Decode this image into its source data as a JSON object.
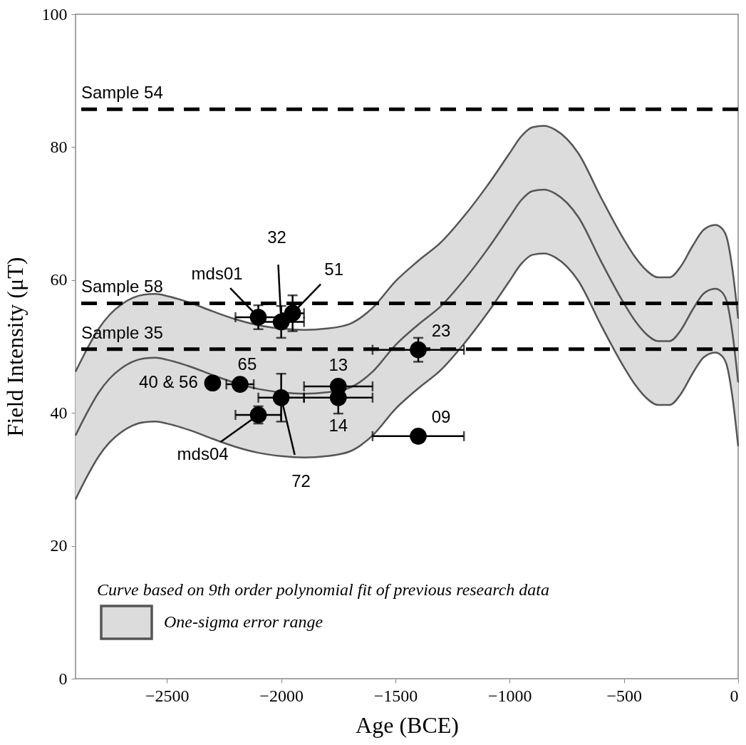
{
  "chart_data": {
    "type": "scatter",
    "xlabel": "Age (BCE)",
    "ylabel": "Field Intensity (μT)",
    "xlim": [
      -2900,
      0
    ],
    "xticks": [
      -2500,
      -2000,
      -1500,
      -1000,
      -500,
      0
    ],
    "ylim": [
      0,
      100
    ],
    "yticks": [
      0,
      20,
      40,
      60,
      80,
      100
    ],
    "grid": false,
    "legend": "bottom left",
    "legend_title": "Curve based on 9th order polynomial fit of previous research data",
    "series": [
      {
        "name": "One-sigma error range",
        "type": "line",
        "color": "#555555",
        "x": [
          -2900,
          -2850,
          -2800,
          -2750,
          -2700,
          -2650,
          -2600,
          -2550,
          -2500,
          -2400,
          -2300,
          -2200,
          -2100,
          -2000,
          -1900,
          -1800,
          -1700,
          -1600,
          -1500,
          -1400,
          -1300,
          -1200,
          -1100,
          -1000,
          -950,
          -900,
          -850,
          -800,
          -700,
          -600,
          -500,
          -450,
          -400,
          -350,
          -300,
          -250,
          -200,
          -150,
          -100,
          -75,
          -50,
          -25,
          0
        ],
        "values": [
          36.6,
          40,
          43,
          45.2,
          46.7,
          47.7,
          48.2,
          48.3,
          48.0,
          47.0,
          45.7,
          44.5,
          43.6,
          43.1,
          42.9,
          43.1,
          43.8,
          46.2,
          50.2,
          53.3,
          56.1,
          60,
          64.5,
          69.5,
          72,
          73.4,
          73.6,
          73,
          69.5,
          62.8,
          56.5,
          53.8,
          51.8,
          50.8,
          50.8,
          52.5,
          55.5,
          58,
          58.7,
          58.3,
          56.8,
          52,
          44.6
        ],
        "upper": [
          46.2,
          49.6,
          52.6,
          54.8,
          56.3,
          57.3,
          57.8,
          57.9,
          57.6,
          56.6,
          55.3,
          54.1,
          53.2,
          52.7,
          52.5,
          52.7,
          53.4,
          55.8,
          59.8,
          62.9,
          65.7,
          69.6,
          74.1,
          79.1,
          81.6,
          83,
          83.2,
          82.6,
          79.1,
          72.4,
          66.1,
          63.4,
          61.4,
          60.4,
          60.4,
          62.1,
          65.1,
          67.6,
          68.3,
          67.9,
          66.4,
          61.6,
          54.2
        ],
        "lower": [
          27,
          30.4,
          33.4,
          35.6,
          37.1,
          38.1,
          38.6,
          38.7,
          38.4,
          37.4,
          36.1,
          34.9,
          34,
          33.5,
          33.3,
          33.5,
          34.2,
          36.6,
          40.6,
          43.7,
          46.5,
          50.4,
          54.9,
          59.9,
          62.4,
          63.8,
          64,
          63.4,
          59.9,
          53.2,
          46.9,
          44.2,
          42.2,
          41.2,
          41.2,
          42.9,
          45.9,
          48.4,
          49.1,
          48.7,
          47.2,
          42.4,
          35
        ]
      },
      {
        "type": "line",
        "color": "#555555",
        "x": [
          -2900,
          -2850,
          -2800,
          -2750,
          -2700,
          -2650,
          -2600,
          -2550,
          -2500,
          -2400,
          -2300,
          -2200,
          -2100,
          -2000,
          -1900,
          -1800,
          -1700,
          -1600,
          -1500,
          -1400,
          -1300,
          -1200,
          -1100,
          -1000,
          -950,
          -900,
          -850,
          -800,
          -700,
          -600,
          -500,
          -450,
          -400,
          -350,
          -300,
          -250,
          -200,
          -150,
          -100,
          -75,
          -50,
          -25,
          0
        ],
        "values": [
          46.2,
          49.6,
          52.6,
          54.8,
          56.3,
          57.3,
          57.8,
          57.9,
          57.6,
          56.6,
          55.3,
          54.1,
          53.2,
          52.7,
          52.5,
          52.7,
          53.4,
          55.8,
          59.8,
          62.9,
          65.7,
          69.6,
          74.1,
          79.1,
          81.6,
          83,
          83.2,
          82.6,
          79.1,
          72.4,
          66.1,
          63.4,
          61.4,
          60.4,
          60.4,
          62.1,
          65.1,
          67.6,
          68.3,
          67.9,
          66.4,
          61.6,
          54.2
        ]
      },
      {
        "type": "line",
        "color": "#555555",
        "x": [
          -2900,
          -2850,
          -2800,
          -2750,
          -2700,
          -2650,
          -2600,
          -2550,
          -2500,
          -2400,
          -2300,
          -2200,
          -2100,
          -2000,
          -1900,
          -1800,
          -1700,
          -1600,
          -1500,
          -1400,
          -1300,
          -1200,
          -1100,
          -1000,
          -950,
          -900,
          -850,
          -800,
          -700,
          -600,
          -500,
          -450,
          -400,
          -350,
          -300,
          -250,
          -200,
          -150,
          -100,
          -75,
          -50,
          -25,
          0
        ],
        "values": [
          27,
          30.4,
          33.4,
          35.6,
          37.1,
          38.1,
          38.6,
          38.7,
          38.4,
          37.4,
          36.1,
          34.9,
          34,
          33.5,
          33.3,
          33.5,
          34.2,
          36.6,
          40.6,
          43.7,
          46.5,
          50.4,
          54.9,
          59.9,
          62.4,
          63.8,
          64,
          63.4,
          59.9,
          53.2,
          46.9,
          44.2,
          42.2,
          41.2,
          41.2,
          42.9,
          45.9,
          48.4,
          49.1,
          48.7,
          47.2,
          42.4,
          35
        ]
      },
      {
        "color": "#000000",
        "marker": "circle",
        "x": [
          -2100,
          -2000,
          -1950,
          -2300,
          -2180,
          -2000,
          -2100,
          -1750,
          -1750,
          -1400,
          -1400
        ],
        "values": [
          54.4,
          53.7,
          55,
          44.5,
          44.3,
          42.3,
          39.7,
          44,
          42.3,
          49.5,
          36.5
        ],
        "errors": [
          1.8,
          2.4,
          2.7,
          null,
          null,
          3.6,
          1.3,
          null,
          2.4,
          1.8,
          null
        ],
        "xerrors": [
          100,
          100,
          50,
          null,
          60,
          100,
          100,
          150,
          150,
          200,
          200
        ]
      }
    ],
    "ref_lines": [
      {
        "axis": "y",
        "value": 85.7,
        "label": "Sample 54",
        "color": "#000000",
        "line_style": "dashed"
      },
      {
        "axis": "y",
        "value": 56.5,
        "label": "Sample 58",
        "color": "#000000",
        "line_style": "dashed"
      },
      {
        "axis": "y",
        "value": 49.6,
        "label": "Sample 35",
        "color": "#000000",
        "line_style": "dashed"
      }
    ],
    "annotations": [
      {
        "text": "mds01",
        "x": -2100,
        "y": 54.4
      },
      {
        "text": "32",
        "x": -2000,
        "y": 53.7
      },
      {
        "text": "51",
        "x": -1950,
        "y": 55
      },
      {
        "text": "40 & 56",
        "x": -2300,
        "y": 44.5
      },
      {
        "text": "65",
        "x": -2180,
        "y": 44.3
      },
      {
        "text": "72",
        "x": -2000,
        "y": 42.3
      },
      {
        "text": "mds04",
        "x": -2100,
        "y": 39.7
      },
      {
        "text": "13",
        "x": -1750,
        "y": 44
      },
      {
        "text": "14",
        "x": -1750,
        "y": 42.3
      },
      {
        "text": "23",
        "x": -1400,
        "y": 49.5
      },
      {
        "text": "09",
        "x": -1400,
        "y": 36.5
      }
    ]
  }
}
